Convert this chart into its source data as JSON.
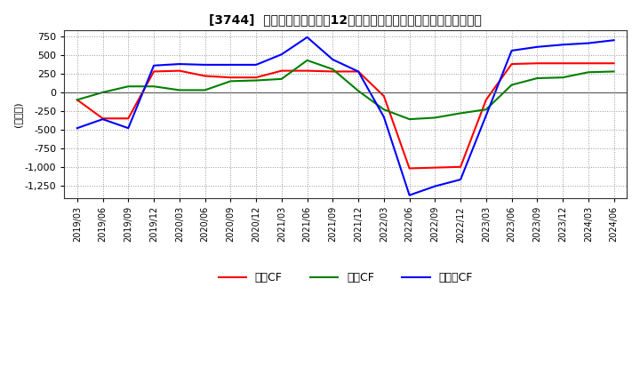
{
  "title": "[3744]  キャッシュフローの12か月移動合計の対前年同期増減額の推移",
  "ylabel": "(百万円)",
  "ylim": [
    -1420,
    830
  ],
  "yticks": [
    750,
    500,
    250,
    0,
    -250,
    -500,
    -750,
    -1000,
    -1250
  ],
  "legend": [
    "営業CF",
    "投資CF",
    "フリーCF"
  ],
  "colors": [
    "#ff0000",
    "#008000",
    "#0000ff"
  ],
  "x_labels": [
    "2019/03",
    "2019/06",
    "2019/09",
    "2019/12",
    "2020/03",
    "2020/06",
    "2020/09",
    "2020/12",
    "2021/03",
    "2021/06",
    "2021/09",
    "2021/12",
    "2022/03",
    "2022/06",
    "2022/09",
    "2022/12",
    "2023/03",
    "2023/06",
    "2023/09",
    "2023/12",
    "2024/03",
    "2024/06"
  ],
  "series_eigyo": [
    -100,
    -350,
    -350,
    280,
    290,
    220,
    200,
    200,
    290,
    290,
    280,
    280,
    -50,
    -1020,
    -1010,
    -1000,
    -100,
    380,
    390,
    390,
    390,
    390
  ],
  "series_toshi": [
    -100,
    0,
    80,
    80,
    30,
    30,
    150,
    160,
    180,
    430,
    310,
    20,
    -230,
    -360,
    -340,
    -280,
    -230,
    100,
    190,
    200,
    270,
    280
  ],
  "series_free": [
    -480,
    -360,
    -480,
    360,
    380,
    370,
    370,
    370,
    510,
    740,
    440,
    280,
    -330,
    -1380,
    -1260,
    -1170,
    -310,
    560,
    610,
    640,
    660,
    700
  ]
}
